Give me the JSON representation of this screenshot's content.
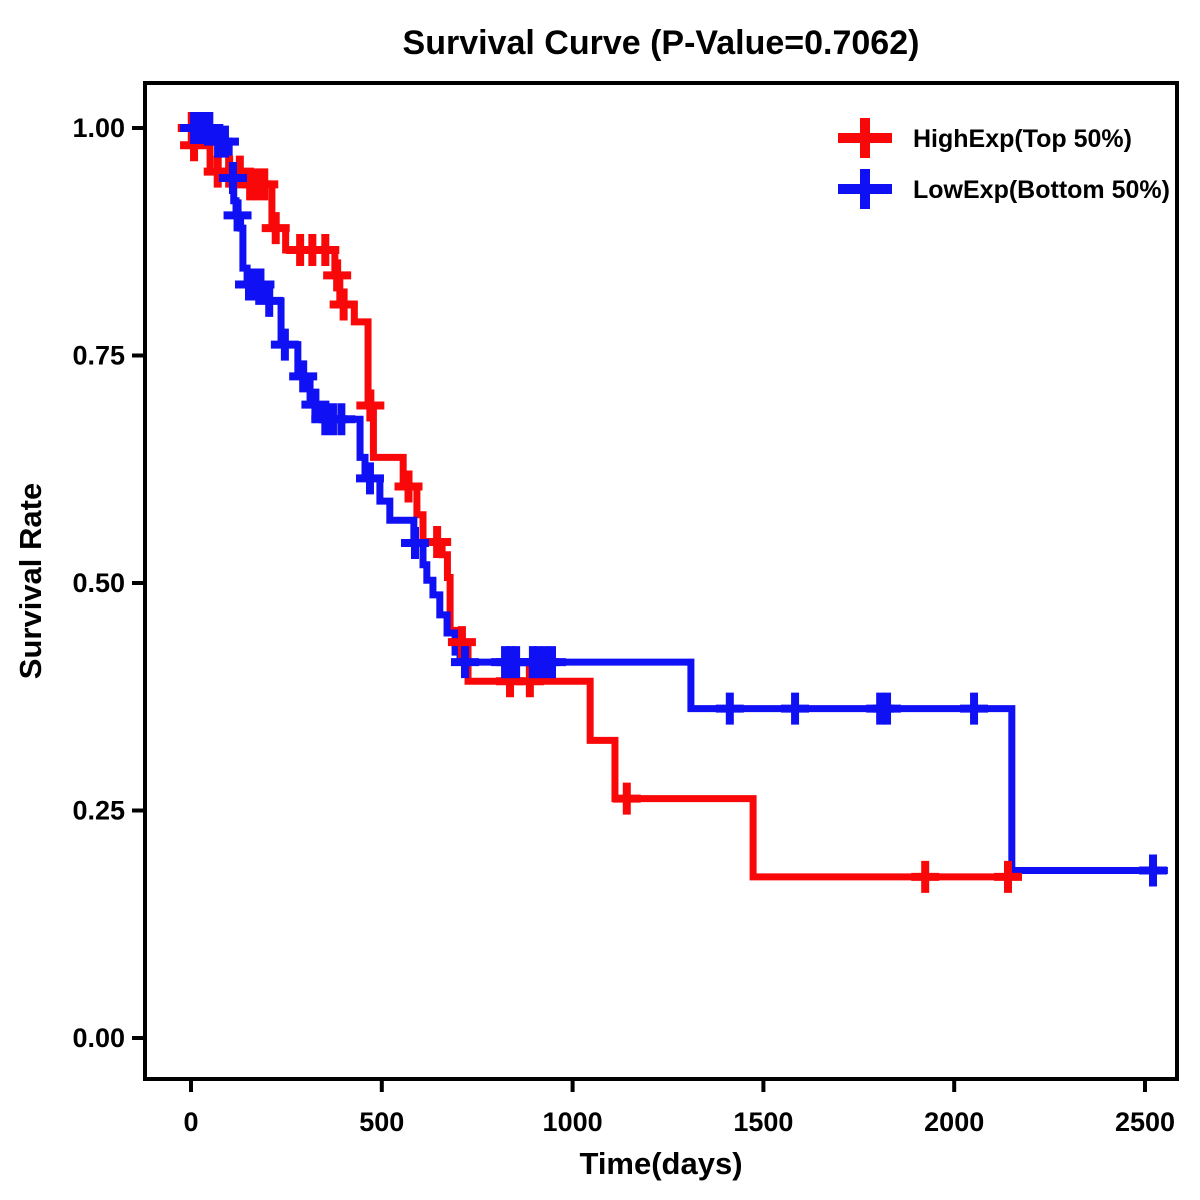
{
  "chart_data": {
    "type": "line",
    "subtype": "kaplan-meier-step-curve",
    "title": "Survival Curve (P-Value=0.7062)",
    "p_value": "0.7062",
    "xlabel": "Time(days)",
    "ylabel": "Survival Rate",
    "x_ticks": [
      0,
      500,
      1000,
      1500,
      2000,
      2500
    ],
    "y_ticks": [
      0.0,
      0.25,
      0.5,
      0.75,
      1.0
    ],
    "xlim": [
      -120,
      2585
    ],
    "ylim": [
      -0.045,
      1.05
    ],
    "grid": "off",
    "legend_position": "top-right-inside",
    "panel_border": "black",
    "background": "#ffffff",
    "series": [
      {
        "name": "HighExp(Top 50%)",
        "color": "#f80808",
        "end_time": 2172,
        "steps": [
          [
            0,
            1.0
          ],
          [
            15,
            0.981
          ],
          [
            50,
            0.952
          ],
          [
            148,
            0.938
          ],
          [
            212,
            0.89
          ],
          [
            248,
            0.866
          ],
          [
            377,
            0.838
          ],
          [
            390,
            0.806
          ],
          [
            428,
            0.787
          ],
          [
            464,
            0.695
          ],
          [
            478,
            0.638
          ],
          [
            556,
            0.606
          ],
          [
            592,
            0.575
          ],
          [
            608,
            0.545
          ],
          [
            658,
            0.531
          ],
          [
            672,
            0.506
          ],
          [
            679,
            0.448
          ],
          [
            695,
            0.435
          ],
          [
            726,
            0.392
          ],
          [
            1046,
            0.327
          ],
          [
            1111,
            0.263
          ],
          [
            1473,
            0.177
          ]
        ],
        "censors": [
          [
            2,
            1.0
          ],
          [
            8,
            0.981
          ],
          [
            70,
            0.952
          ],
          [
            100,
            0.952
          ],
          [
            128,
            0.952
          ],
          [
            155,
            0.938
          ],
          [
            172,
            0.938
          ],
          [
            192,
            0.938
          ],
          [
            222,
            0.89
          ],
          [
            286,
            0.866
          ],
          [
            318,
            0.866
          ],
          [
            352,
            0.866
          ],
          [
            383,
            0.838
          ],
          [
            400,
            0.806
          ],
          [
            470,
            0.695
          ],
          [
            570,
            0.606
          ],
          [
            645,
            0.545
          ],
          [
            710,
            0.435
          ],
          [
            836,
            0.392
          ],
          [
            888,
            0.392
          ],
          [
            1142,
            0.263
          ],
          [
            1924,
            0.177
          ],
          [
            2141,
            0.177
          ]
        ]
      },
      {
        "name": "LowExp(Bottom 50%)",
        "color": "#1010f5",
        "end_time": 2560,
        "steps": [
          [
            0,
            1.0
          ],
          [
            60,
            0.985
          ],
          [
            100,
            0.945
          ],
          [
            112,
            0.92
          ],
          [
            118,
            0.904
          ],
          [
            130,
            0.89
          ],
          [
            136,
            0.846
          ],
          [
            147,
            0.828
          ],
          [
            190,
            0.81
          ],
          [
            236,
            0.762
          ],
          [
            280,
            0.727
          ],
          [
            312,
            0.696
          ],
          [
            343,
            0.68
          ],
          [
            443,
            0.638
          ],
          [
            456,
            0.615
          ],
          [
            495,
            0.59
          ],
          [
            521,
            0.569
          ],
          [
            584,
            0.544
          ],
          [
            608,
            0.52
          ],
          [
            618,
            0.503
          ],
          [
            634,
            0.487
          ],
          [
            652,
            0.465
          ],
          [
            671,
            0.445
          ],
          [
            692,
            0.424
          ],
          [
            705,
            0.413
          ],
          [
            1310,
            0.362
          ],
          [
            2151,
            0.184
          ]
        ],
        "censors": [
          [
            8,
            1.0
          ],
          [
            20,
            1.0
          ],
          [
            34,
            1.0
          ],
          [
            48,
            1.0
          ],
          [
            71,
            0.985
          ],
          [
            89,
            0.985
          ],
          [
            110,
            0.945
          ],
          [
            122,
            0.904
          ],
          [
            152,
            0.828
          ],
          [
            168,
            0.828
          ],
          [
            182,
            0.828
          ],
          [
            205,
            0.81
          ],
          [
            246,
            0.762
          ],
          [
            294,
            0.727
          ],
          [
            326,
            0.696
          ],
          [
            352,
            0.68
          ],
          [
            372,
            0.68
          ],
          [
            394,
            0.68
          ],
          [
            469,
            0.615
          ],
          [
            587,
            0.544
          ],
          [
            718,
            0.413
          ],
          [
            823,
            0.413
          ],
          [
            836,
            0.413
          ],
          [
            852,
            0.413
          ],
          [
            896,
            0.413
          ],
          [
            909,
            0.413
          ],
          [
            928,
            0.413
          ],
          [
            946,
            0.413
          ],
          [
            1412,
            0.362
          ],
          [
            1583,
            0.362
          ],
          [
            1806,
            0.362
          ],
          [
            1824,
            0.362
          ],
          [
            2052,
            0.362
          ],
          [
            2521,
            0.184
          ]
        ]
      }
    ]
  },
  "legend": {
    "items": [
      {
        "label": "HighExp(Top 50%)",
        "color": "#f80808",
        "marker": "plus-icon"
      },
      {
        "label": "LowExp(Bottom 50%)",
        "color": "#1010f5",
        "marker": "plus-icon"
      }
    ]
  }
}
